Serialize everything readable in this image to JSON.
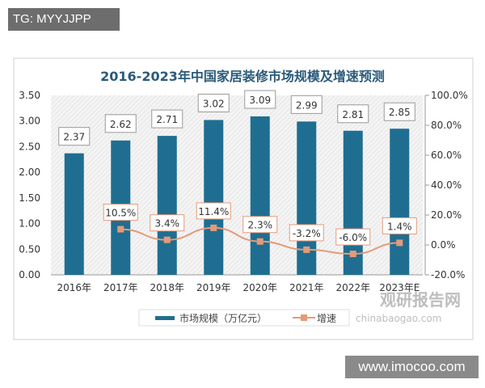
{
  "watermark_top": "TG: MYYJJPP",
  "watermark_bottom": "www.imocoo.com",
  "source_watermark": [
    "观研报告网",
    "chinabaogao.com"
  ],
  "chart_data": {
    "type": "bar+line",
    "title": "2016-2023年中国家居装修市场规模及增速预测",
    "categories": [
      "2016年",
      "2017年",
      "2018年",
      "2019年",
      "2020年",
      "2021年",
      "2022年",
      "2023年E"
    ],
    "series": [
      {
        "name": "市场规模（万亿元）",
        "type": "bar",
        "axis": "left",
        "values": [
          2.37,
          2.62,
          2.71,
          3.02,
          3.09,
          2.99,
          2.81,
          2.85
        ],
        "labels": [
          "2.37",
          "2.62",
          "2.71",
          "3.02",
          "3.09",
          "2.99",
          "2.81",
          "2.85"
        ],
        "color": "#1f6e91"
      },
      {
        "name": "增速",
        "type": "line",
        "axis": "right",
        "values": [
          null,
          10.5,
          3.4,
          11.4,
          2.3,
          -3.2,
          -6.0,
          1.4
        ],
        "labels": [
          "",
          "10.5%",
          "3.4%",
          "11.4%",
          "2.3%",
          "-3.2%",
          "-6.0%",
          "1.4%"
        ],
        "color": "#e59a78"
      }
    ],
    "left_axis": {
      "ylim": [
        0,
        3.5
      ],
      "ticks": [
        "0.00",
        "0.50",
        "1.00",
        "1.50",
        "2.00",
        "2.50",
        "3.00",
        "3.50"
      ]
    },
    "right_axis": {
      "ylim": [
        -20,
        100
      ],
      "ticks": [
        "-20.0%",
        "0.0%",
        "20.0%",
        "40.0%",
        "60.0%",
        "80.0%",
        "100.0%"
      ]
    },
    "legend_position": "bottom",
    "grid": false
  }
}
